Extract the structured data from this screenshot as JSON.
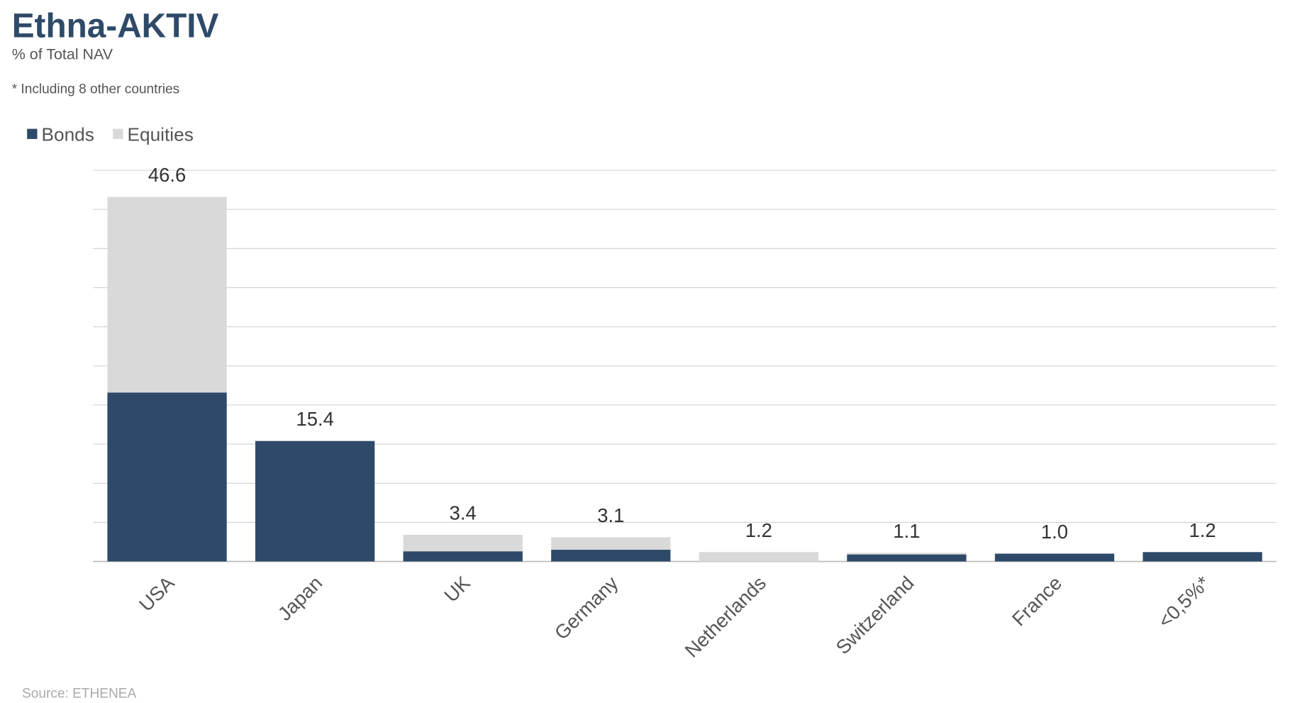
{
  "chart_data": {
    "type": "stacked_bar",
    "title": "Ethna-AKTIV",
    "subtitle": "% of Total NAV",
    "note": "* Including 8 other countries",
    "source": "Source: ETHENEA",
    "categories": [
      "USA",
      "Japan",
      "UK",
      "Germany",
      "Netherlands",
      "Switzerland",
      "France",
      "<0,5%*"
    ],
    "series": [
      {
        "name": "Bonds",
        "color": "#2e4a68",
        "values": [
          21.6,
          15.4,
          1.3,
          1.5,
          0,
          0.9,
          1.0,
          1.2
        ]
      },
      {
        "name": "Equities",
        "color": "#d9d9d9",
        "values": [
          25.0,
          0,
          2.1,
          1.6,
          1.2,
          0.2,
          0,
          0
        ]
      }
    ],
    "totals": [
      46.6,
      15.4,
      3.4,
      3.1,
      1.2,
      1.1,
      1.0,
      1.2
    ],
    "total_labels": [
      "46.6",
      "15.4",
      "3.4",
      "3.1",
      "1.2",
      "1.1",
      "1.0",
      "1.2"
    ],
    "ylim": [
      0,
      50
    ],
    "ygrid": [
      0,
      5,
      10,
      15,
      20,
      25,
      30,
      35,
      40,
      45,
      50
    ],
    "grid": true,
    "legend": "top-left"
  }
}
